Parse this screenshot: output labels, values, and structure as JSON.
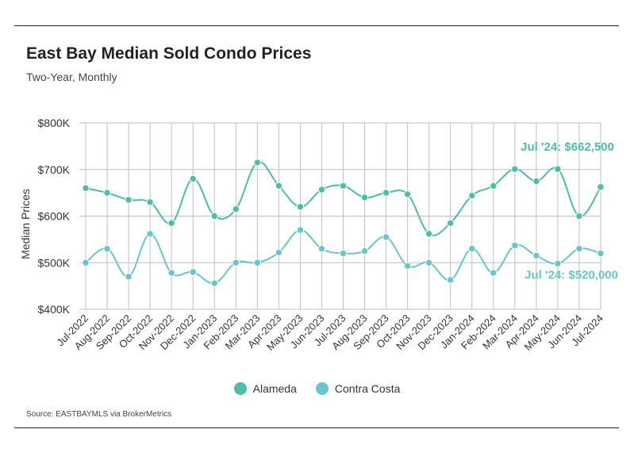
{
  "header": {
    "title": "East Bay Median Sold Condo Prices",
    "subtitle": "Two-Year, Monthly"
  },
  "footer": {
    "source": "Source:  EASTBAYMLS via BrokerMetrics"
  },
  "colors": {
    "alameda": "#4bbfa5",
    "contra_costa": "#66c6cc",
    "grid": "#bfbfbf",
    "text": "#333333"
  },
  "chart_data": {
    "type": "line",
    "title": "East Bay Median Sold Condo Prices",
    "subtitle": "Two-Year, Monthly",
    "xlabel": "",
    "ylabel": "Median Prices",
    "ylim": [
      400000,
      800000
    ],
    "yticks": [
      400000,
      500000,
      600000,
      700000,
      800000
    ],
    "ytick_labels": [
      "$400K",
      "$500K",
      "$600K",
      "$700K",
      "$800K"
    ],
    "grid": true,
    "legend_position": "bottom-center",
    "categories": [
      "Jul-2022",
      "Aug-2022",
      "Sep-2022",
      "Oct-2022",
      "Nov-2022",
      "Dec-2022",
      "Jan-2023",
      "Feb-2023",
      "Mar-2023",
      "Apr-2023",
      "May-2023",
      "Jun-2023",
      "Jul-2023",
      "Aug-2023",
      "Sep-2023",
      "Oct-2023",
      "Nov-2023",
      "Dec-2023",
      "Jan-2024",
      "Feb-2024",
      "Mar-2024",
      "Apr-2024",
      "May-2024",
      "Jun-2024",
      "Jul-2024"
    ],
    "series": [
      {
        "name": "Alameda",
        "color": "#4bbfa5",
        "values": [
          660000,
          650000,
          635000,
          630000,
          585000,
          680000,
          600000,
          615000,
          715000,
          665000,
          620000,
          657000,
          665000,
          640000,
          650000,
          647000,
          562000,
          585000,
          644000,
          665000,
          701000,
          675000,
          701000,
          600000,
          662500
        ]
      },
      {
        "name": "Contra Costa",
        "color": "#66c6cc",
        "values": [
          500000,
          530000,
          470000,
          562000,
          478000,
          480000,
          456000,
          500000,
          500000,
          522000,
          570000,
          530000,
          520000,
          525000,
          555000,
          493000,
          500000,
          463000,
          530000,
          478000,
          537000,
          515000,
          498000,
          530000,
          520000
        ]
      }
    ],
    "annotations": [
      {
        "series": "Alameda",
        "text": "Jul '24: $662,500"
      },
      {
        "series": "Contra Costa",
        "text": "Jul '24: $520,000"
      }
    ]
  }
}
